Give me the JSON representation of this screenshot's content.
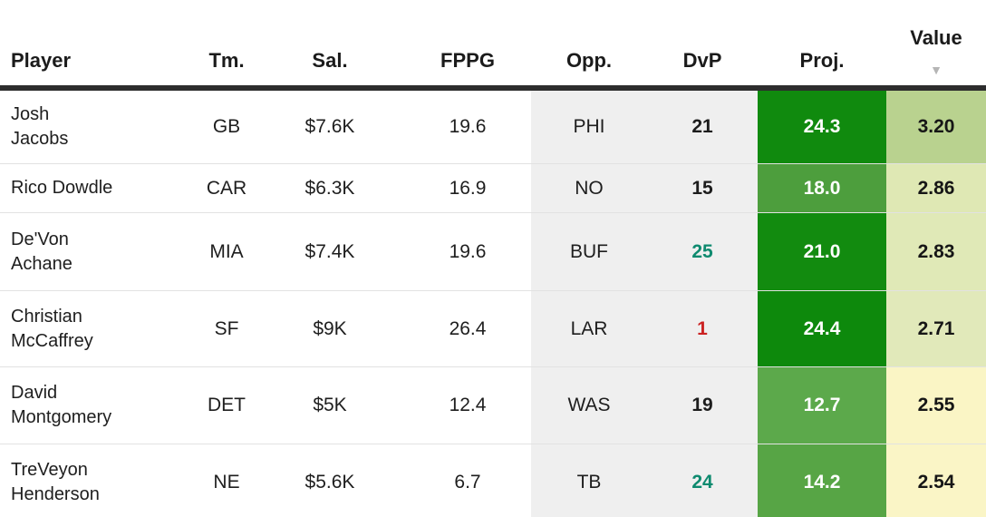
{
  "ui_colors": {
    "header_text": "#1b1b1b",
    "header_border": "#2d2d2d",
    "sort_arrow": "#b5b5b5",
    "muted_column_bg": "#efefef",
    "row_divider": "#e2e2e2",
    "proj_text": "#ffffff",
    "dvp_favorable": "#0e8a6f",
    "dvp_unfavorable": "#cb2222",
    "dvp_neutral": "#1c1c1c"
  },
  "header": {
    "columns": [
      "Player",
      "Tm.",
      "Sal.",
      "FPPG",
      "Opp.",
      "DvP",
      "Proj.",
      "Value"
    ],
    "sorted_column": "Value",
    "sort_direction": "desc",
    "sort_arrow_glyph": "▼"
  },
  "rows": [
    {
      "player": "Josh\nJacobs",
      "tm": "GB",
      "sal": "$7.6K",
      "fppg": "19.6",
      "opp": "PHI",
      "dvp": "21",
      "dvp_color": "#1c1c1c",
      "proj": "24.3",
      "proj_bg": "#108a0e",
      "value": "3.20",
      "value_bg": "#b9d28f"
    },
    {
      "player": "Rico Dowdle",
      "tm": "CAR",
      "sal": "$6.3K",
      "fppg": "16.9",
      "opp": "NO",
      "dvp": "15",
      "dvp_color": "#1c1c1c",
      "proj": "18.0",
      "proj_bg": "#4d9e3d",
      "value": "2.86",
      "value_bg": "#dfe8b4"
    },
    {
      "player": "De'Von\nAchane",
      "tm": "MIA",
      "sal": "$7.4K",
      "fppg": "19.6",
      "opp": "BUF",
      "dvp": "25",
      "dvp_color": "#0e8a6f",
      "proj": "21.0",
      "proj_bg": "#128b0f",
      "value": "2.83",
      "value_bg": "#e0e9b7"
    },
    {
      "player": "Christian\nMcCaffrey",
      "tm": "SF",
      "sal": "$9K",
      "fppg": "26.4",
      "opp": "LAR",
      "dvp": "1",
      "dvp_color": "#cb2222",
      "proj": "24.4",
      "proj_bg": "#0d890c",
      "value": "2.71",
      "value_bg": "#e1e9ba"
    },
    {
      "player": "David\nMontgomery",
      "tm": "DET",
      "sal": "$5K",
      "fppg": "12.4",
      "opp": "WAS",
      "dvp": "19",
      "dvp_color": "#1c1c1c",
      "proj": "12.7",
      "proj_bg": "#5ca94b",
      "value": "2.55",
      "value_bg": "#faf5c5"
    },
    {
      "player": "TreVeyon\nHenderson",
      "tm": "NE",
      "sal": "$5.6K",
      "fppg": "6.7",
      "opp": "TB",
      "dvp": "24",
      "dvp_color": "#0e8a6f",
      "proj": "14.2",
      "proj_bg": "#57a545",
      "value": "2.54",
      "value_bg": "#faf5c6"
    }
  ]
}
